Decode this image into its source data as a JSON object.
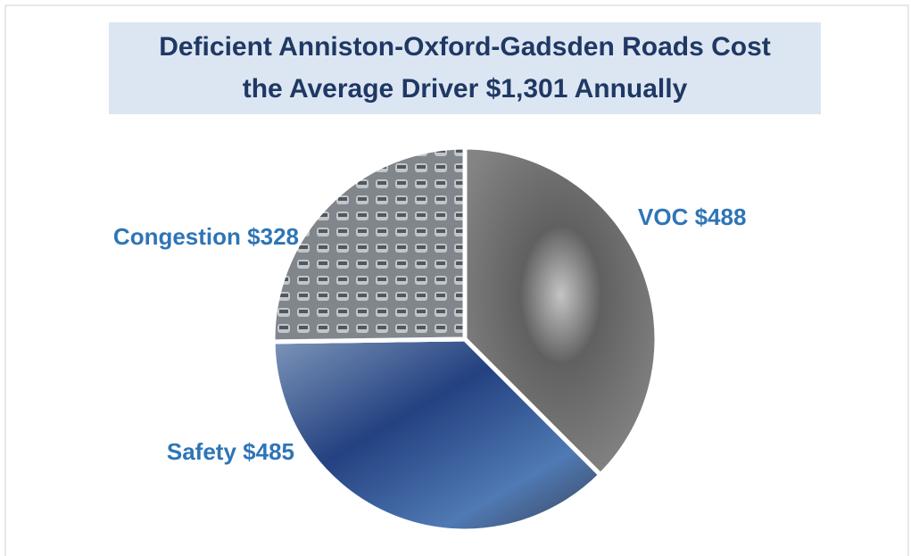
{
  "chart_data": {
    "type": "pie",
    "title": [
      "Deficient Anniston-Oxford-Gadsden Roads Cost",
      "the Average Driver $1,301 Annually"
    ],
    "categories": [
      "VOC",
      "Safety",
      "Congestion"
    ],
    "values": [
      488,
      485,
      328
    ],
    "value_labels": [
      "$488",
      "$485",
      "$328"
    ],
    "colors": [
      "#6f6f6f",
      "#2f4f8f",
      "#8a8f96"
    ]
  }
}
